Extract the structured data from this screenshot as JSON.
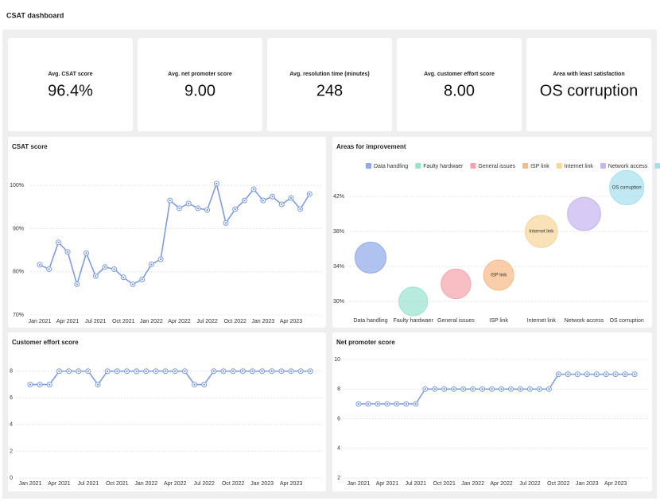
{
  "header": {
    "title": "CSAT dashboard"
  },
  "kpis": [
    {
      "label": "Avg. CSAT score",
      "value": "96.4%"
    },
    {
      "label": "Avg. net promoter score",
      "value": "9.00"
    },
    {
      "label": "Avg. resolution time (minutes)",
      "value": "248"
    },
    {
      "label": "Avg. customer effort score",
      "value": "8.00"
    },
    {
      "label": "Area with least satisfaction",
      "value": "OS corruption"
    }
  ],
  "chart_data": [
    {
      "type": "line",
      "title": "CSAT score",
      "color": "#7d9de0",
      "grid": true,
      "categories": [
        "Jan 2021",
        null,
        null,
        "Apr 2021",
        null,
        null,
        "Jul 2021",
        null,
        null,
        "Oct 2021",
        null,
        null,
        "Jan 2022",
        null,
        null,
        "Apr 2022",
        null,
        null,
        "Jul 2022",
        null,
        null,
        "Oct 2022",
        null,
        null,
        "Jan 2023",
        null,
        null,
        "Apr 2023",
        null,
        null
      ],
      "values": [
        81.6,
        80.6,
        86.8,
        84.6,
        77.1,
        84.3,
        79.0,
        81.1,
        80.6,
        78.7,
        77.1,
        78.2,
        81.7,
        82.9,
        96.5,
        94.7,
        95.8,
        94.7,
        94.3,
        100.4,
        91.3,
        94.5,
        96.5,
        99.1,
        96.5,
        97.4,
        95.6,
        97.1,
        94.5,
        98.0
      ],
      "ylim": [
        70,
        101.5
      ],
      "yticks": [
        {
          "value": 70,
          "label": "70%"
        },
        {
          "value": 80,
          "label": "80%"
        },
        {
          "value": 90,
          "label": "90%"
        },
        {
          "value": 100,
          "label": "100%"
        }
      ]
    },
    {
      "type": "bubble",
      "title": "Areas for improvement",
      "grid": true,
      "legend": "top",
      "categories": [
        "Data handling",
        "Faulty hardwaer",
        "General issues",
        "ISP link",
        "Internet link",
        "Network access",
        "OS corruption"
      ],
      "values": [
        35.0,
        30.0,
        32.0,
        33.0,
        38.0,
        40.0,
        43.0
      ],
      "colors": [
        "#8fa8e8",
        "#98e3cf",
        "#f4a3ab",
        "#f6b985",
        "#f8d59a",
        "#c6b4ef",
        "#a6e0ef"
      ],
      "bubble_labels": [
        null,
        null,
        null,
        "ISP link",
        "Internet link",
        null,
        "OS corruption"
      ],
      "ylim": [
        29,
        44
      ],
      "yticks": [
        {
          "value": 30,
          "label": "30%"
        },
        {
          "value": 34,
          "label": "34%"
        },
        {
          "value": 38,
          "label": "38%"
        },
        {
          "value": 42,
          "label": "42%"
        }
      ]
    },
    {
      "type": "line",
      "title": "Customer effort score",
      "color": "#7d9de0",
      "grid": true,
      "categories": [
        "Jan 2021",
        null,
        null,
        "Apr 2021",
        null,
        null,
        "Jul 2021",
        null,
        null,
        "Oct 2021",
        null,
        null,
        "Jan 2022",
        null,
        null,
        "Apr 2022",
        null,
        null,
        "Jul 2022",
        null,
        null,
        "Oct 2022",
        null,
        null,
        "Jan 2023",
        null,
        null,
        "Apr 2023",
        null,
        null
      ],
      "values": [
        7,
        7,
        7,
        8,
        8,
        8,
        8,
        7,
        8,
        8,
        8,
        8,
        8,
        8,
        8,
        8,
        8,
        7,
        7,
        8,
        8,
        8,
        8,
        8,
        8,
        8,
        8,
        8,
        8,
        8
      ],
      "ylim": [
        0,
        8.7
      ],
      "yticks": [
        0,
        2,
        4,
        6,
        8
      ]
    },
    {
      "type": "line",
      "title": "Net promoter score",
      "color": "#7d9de0",
      "grid": true,
      "categories": [
        "Jan 2021",
        null,
        null,
        "Apr 2021",
        null,
        null,
        "Jul 2021",
        null,
        null,
        "Oct 2021",
        null,
        null,
        "Jan 2022",
        null,
        null,
        "Apr 2022",
        null,
        null,
        "Jul 2022",
        null,
        null,
        "Oct 2022",
        null,
        null,
        "Jan 2023",
        null,
        null,
        "Apr 2023",
        null,
        null
      ],
      "values": [
        7,
        7,
        7,
        7,
        7,
        7,
        7,
        8,
        8,
        8,
        8,
        8,
        8,
        8,
        8,
        8,
        8,
        8,
        8,
        8,
        8,
        9,
        9,
        9,
        9,
        9,
        9,
        9,
        9,
        9
      ],
      "ylim": [
        2,
        10
      ],
      "yticks": [
        2,
        4,
        6,
        8,
        10
      ]
    }
  ]
}
